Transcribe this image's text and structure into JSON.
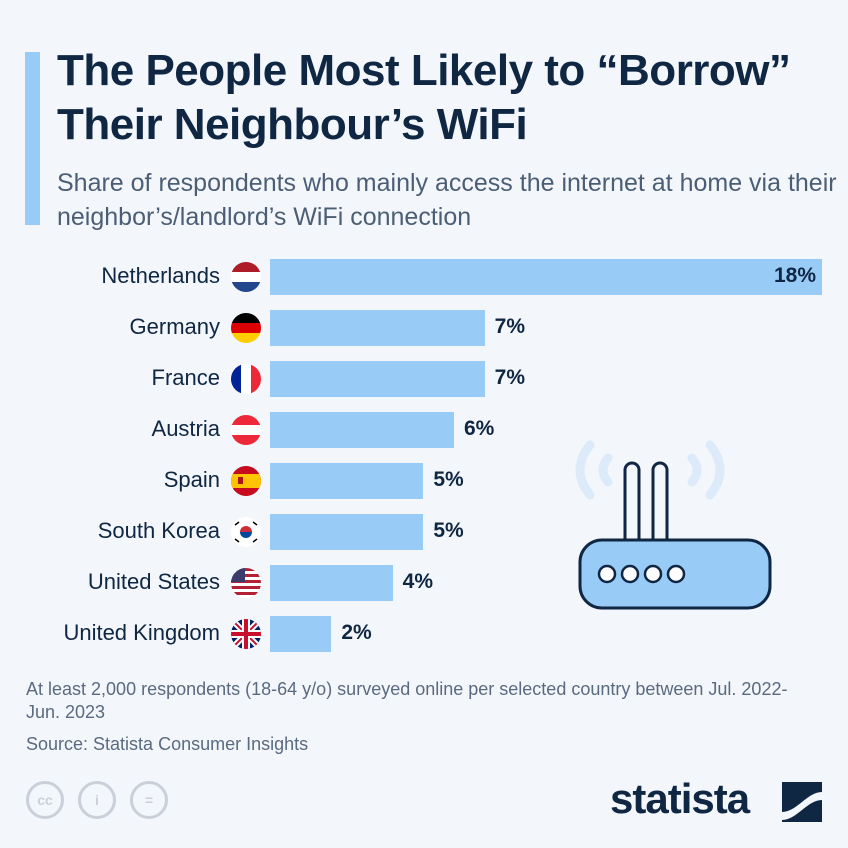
{
  "header": {
    "title": "The People Most Likely to “Borrow” Their Neighbour’s WiFi",
    "subtitle": "Share of respondents who mainly access the internet at home via their neighbor’s/landlord’s WiFi connection"
  },
  "chart_data": {
    "type": "bar",
    "orientation": "horizontal",
    "categories": [
      "Netherlands",
      "Germany",
      "France",
      "Austria",
      "Spain",
      "South Korea",
      "United States",
      "United Kingdom"
    ],
    "values": [
      18,
      7,
      7,
      6,
      5,
      5,
      4,
      2
    ],
    "value_labels": [
      "18%",
      "7%",
      "7%",
      "6%",
      "5%",
      "5%",
      "4%",
      "2%"
    ],
    "unit": "%",
    "xlim": [
      0,
      18
    ],
    "grid": false,
    "bar_color": "#99cbf7"
  },
  "footer": {
    "note": "At least 2,000 respondents (18-64 y/o) surveyed online per selected country between Jul. 2022-Jun. 2023",
    "source": "Source: Statista Consumer Insights",
    "logo": "statista",
    "cc_icons": [
      "cc",
      "by",
      "nd"
    ]
  },
  "colors": {
    "background": "#f3f6fa",
    "text": "#0f2743",
    "accent": "#99cbf7"
  }
}
